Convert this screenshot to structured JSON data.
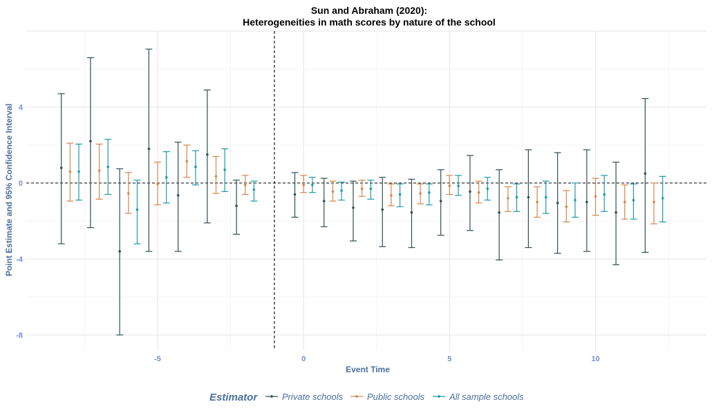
{
  "chart_data": {
    "type": "errorbar",
    "title": "Sun and Abraham (2020):",
    "subtitle": "Heterogeneities in math scores by nature of the school",
    "xlabel": "Event Time",
    "ylabel": "Point Estimate and 95% Confidence Interval",
    "xlim": [
      -9.5,
      13.8
    ],
    "ylim": [
      -8.8,
      8.0
    ],
    "xticks": [
      -5,
      0,
      5,
      10
    ],
    "yticks": [
      4,
      0,
      -4,
      -8
    ],
    "reference_vline": -1,
    "reference_hline": 0,
    "grid": true,
    "legend_position": "bottom",
    "legend_title": "Estimator",
    "x": [
      -8,
      -7,
      -6,
      -5,
      -4,
      -3,
      -2,
      0,
      1,
      2,
      3,
      4,
      5,
      6,
      7,
      8,
      9,
      10,
      11,
      12
    ],
    "series": [
      {
        "name": "Private schools",
        "color": "#2f4f4f",
        "offset": -0.3,
        "estimate": [
          0.8,
          2.2,
          -3.6,
          1.8,
          -0.65,
          1.5,
          -1.2,
          -0.6,
          -0.95,
          -1.3,
          -1.4,
          -1.55,
          -0.95,
          -0.45,
          -1.55,
          -0.75,
          -1.05,
          -1.0,
          -1.55,
          0.5
        ],
        "lower": [
          -3.2,
          -2.35,
          -8.0,
          -3.6,
          -3.6,
          -2.1,
          -2.7,
          -1.8,
          -2.3,
          -3.05,
          -3.35,
          -3.4,
          -2.75,
          -2.5,
          -4.05,
          -3.4,
          -3.7,
          -3.6,
          -4.3,
          -3.65
        ],
        "upper": [
          4.7,
          6.6,
          0.75,
          7.05,
          2.15,
          4.9,
          0.15,
          0.55,
          0.25,
          0.1,
          0.3,
          0.2,
          0.7,
          1.45,
          0.7,
          1.75,
          1.6,
          1.75,
          1.1,
          4.45
        ]
      },
      {
        "name": "Public schools",
        "color": "#d2874a",
        "offset": 0.0,
        "estimate": [
          0.6,
          0.65,
          -0.55,
          -0.05,
          1.15,
          0.35,
          -0.1,
          -0.1,
          -0.45,
          -0.3,
          -0.65,
          -0.55,
          -0.15,
          -0.5,
          -0.8,
          -1.0,
          -1.25,
          -0.7,
          -1.0,
          -1.0
        ],
        "lower": [
          -0.95,
          -0.85,
          -1.6,
          -1.15,
          0.3,
          -0.55,
          -0.6,
          -0.5,
          -0.95,
          -0.7,
          -1.2,
          -1.1,
          -0.6,
          -1.05,
          -1.5,
          -1.8,
          -2.05,
          -1.7,
          -1.9,
          -2.15
        ],
        "upper": [
          2.1,
          2.05,
          0.55,
          1.1,
          2.0,
          1.4,
          0.4,
          0.4,
          0.1,
          0.15,
          -0.05,
          -0.05,
          0.4,
          0.1,
          -0.2,
          -0.2,
          -0.4,
          0.25,
          -0.1,
          0.0
        ]
      },
      {
        "name": "All sample schools",
        "color": "#1a9aa8",
        "offset": 0.3,
        "estimate": [
          0.6,
          0.85,
          -1.4,
          0.3,
          0.85,
          0.7,
          -0.35,
          -0.1,
          -0.4,
          -0.3,
          -0.6,
          -0.5,
          -0.15,
          -0.3,
          -0.75,
          -0.75,
          -0.9,
          -0.6,
          -0.9,
          -0.8
        ],
        "lower": [
          -0.9,
          -0.6,
          -3.2,
          -1.05,
          -0.1,
          -0.45,
          -0.95,
          -0.5,
          -0.9,
          -0.85,
          -1.25,
          -1.15,
          -0.65,
          -0.9,
          -1.5,
          -1.6,
          -1.8,
          -1.5,
          -1.9,
          -2.05
        ],
        "upper": [
          2.05,
          2.3,
          0.15,
          1.65,
          1.7,
          1.8,
          0.1,
          0.3,
          0.05,
          0.15,
          -0.05,
          -0.05,
          0.4,
          0.3,
          -0.05,
          0.1,
          0.0,
          0.4,
          -0.05,
          0.35
        ]
      }
    ]
  }
}
